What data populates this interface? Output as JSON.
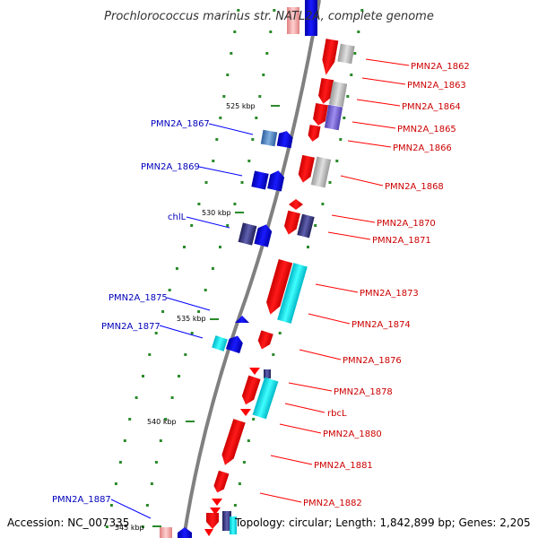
{
  "title": "Prochlorococcus marinus str. NATL2A, complete genome",
  "footer": {
    "accession": "Accession: NC_007335",
    "summary": "Topology: circular; Length: 1,842,899 bp; Genes: 2,205"
  },
  "scale_marks": [
    "525 kbp",
    "530 kbp",
    "535 kbp",
    "540 kbp",
    "545 kbp"
  ],
  "forward_genes": [
    "PMN2A_1862",
    "PMN2A_1863",
    "PMN2A_1864",
    "PMN2A_1865",
    "PMN2A_1866",
    "PMN2A_1868",
    "PMN2A_1870",
    "PMN2A_1871",
    "PMN2A_1873",
    "PMN2A_1874",
    "PMN2A_1876",
    "PMN2A_1878",
    "rbcL",
    "PMN2A_1880",
    "PMN2A_1881",
    "PMN2A_1882"
  ],
  "reverse_genes": [
    "PMN2A_1867",
    "PMN2A_1869",
    "chlL",
    "PMN2A_1875",
    "PMN2A_1877",
    "PMN2A_1887"
  ],
  "colors": {
    "forward": "#ff0000",
    "reverse": "#0000ff",
    "cyan": "#00e0e0",
    "gray": "#b0b0b0",
    "navy": "#303080",
    "backbone": "#808080"
  }
}
